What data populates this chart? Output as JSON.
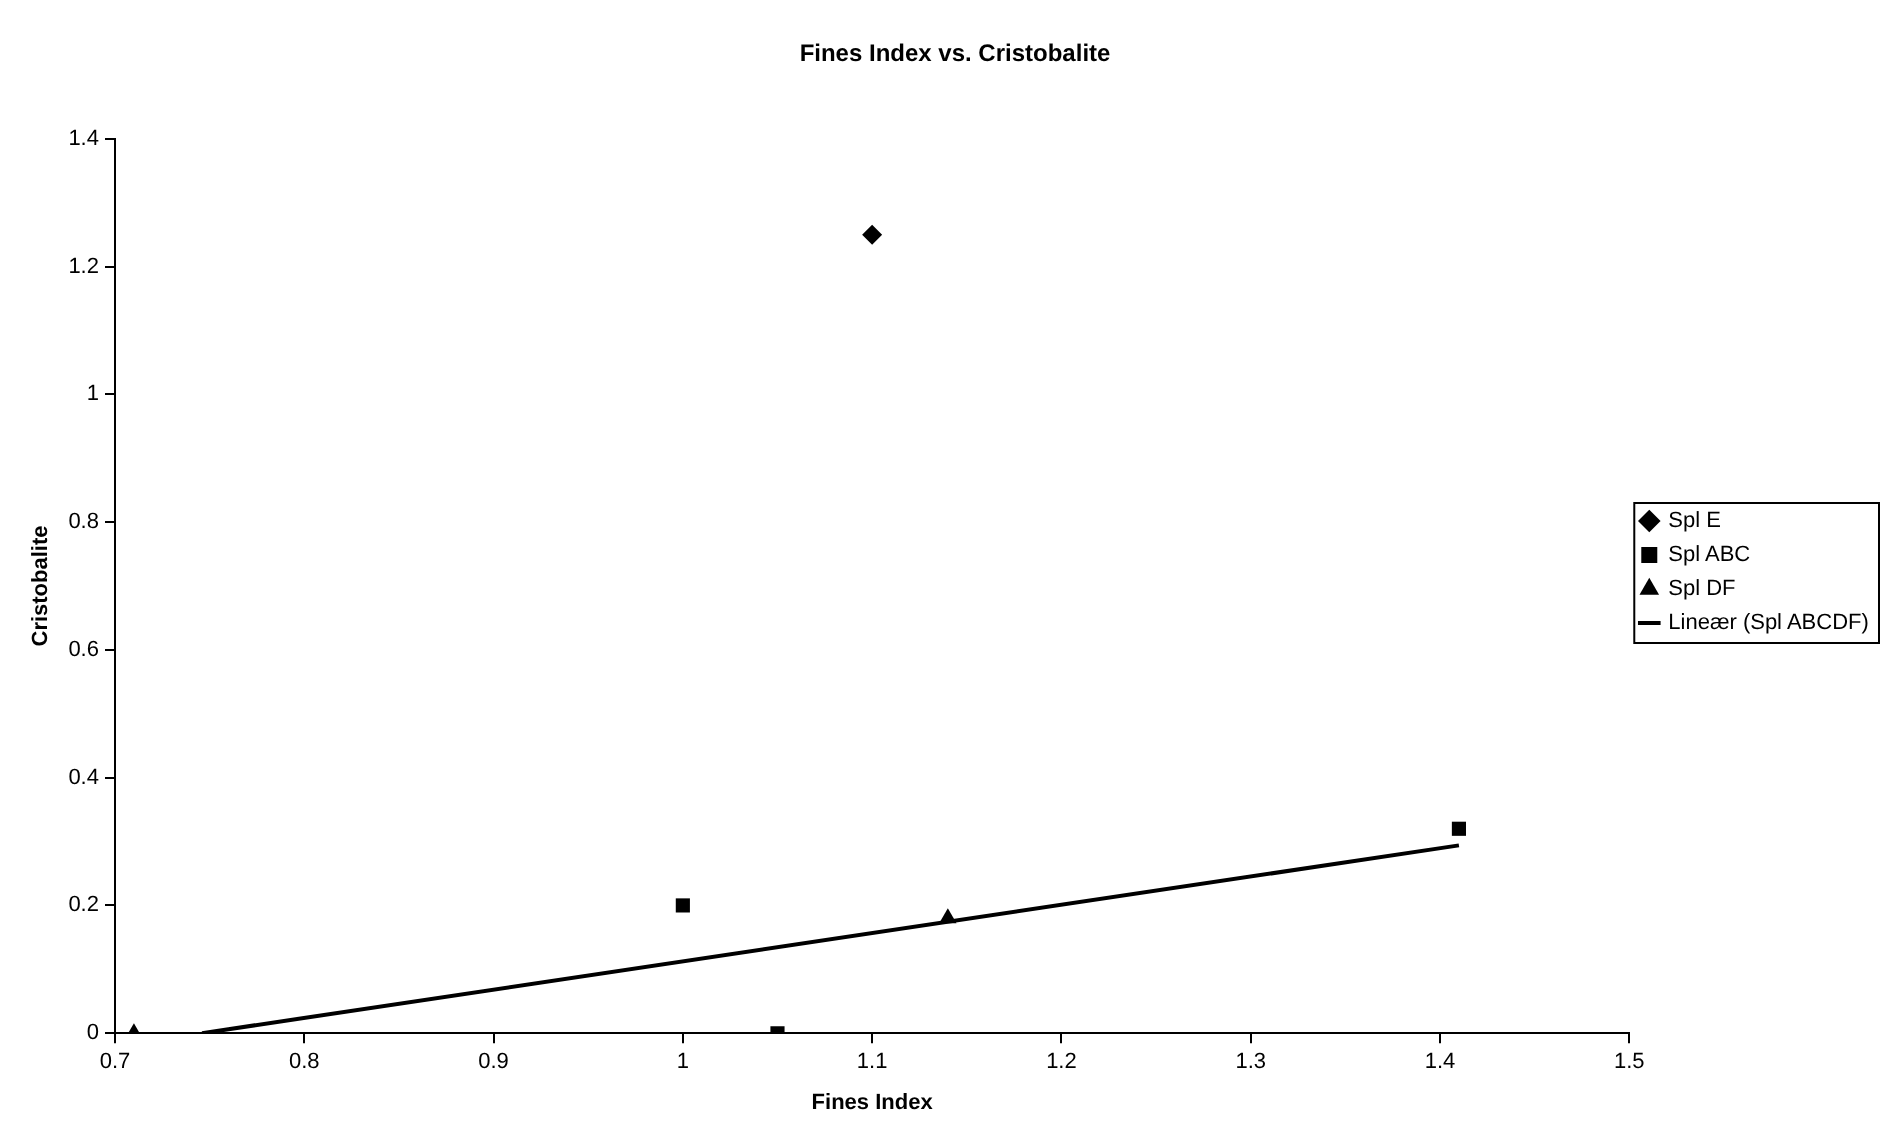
{
  "chart_data": {
    "type": "scatter",
    "title": "Fines Index vs. Cristobalite",
    "xlabel": "Fines Index",
    "ylabel": "Cristobalite",
    "xlim": [
      0.7,
      1.5
    ],
    "xticks": [
      0.7,
      0.8,
      0.9,
      1,
      1.1,
      1.2,
      1.3,
      1.4,
      1.5
    ],
    "ylim": [
      0,
      1.4
    ],
    "yticks": [
      0,
      0.2,
      0.4,
      0.6,
      0.8,
      1,
      1.2,
      1.4
    ],
    "grid": false,
    "legend": "right",
    "series": [
      {
        "name": "Spl E",
        "color": "#000000",
        "marker": "diamond",
        "x": [
          1.1
        ],
        "values": [
          1.25
        ]
      },
      {
        "name": "Spl ABC",
        "color": "#000000",
        "marker": "square",
        "x": [
          1.0,
          1.05,
          1.41
        ],
        "values": [
          0.2,
          0,
          0.32
        ]
      },
      {
        "name": "Spl DF",
        "color": "#000000",
        "marker": "triangle",
        "x": [
          0.71,
          1.14
        ],
        "values": [
          0,
          0.18
        ]
      },
      {
        "name": "Lineær (Spl ABCDF)",
        "type": "line",
        "color": "#000000",
        "marker": "none",
        "line_style": "solid",
        "x": [
          0.746,
          1.41
        ],
        "values": [
          0,
          0.294
        ]
      }
    ]
  }
}
